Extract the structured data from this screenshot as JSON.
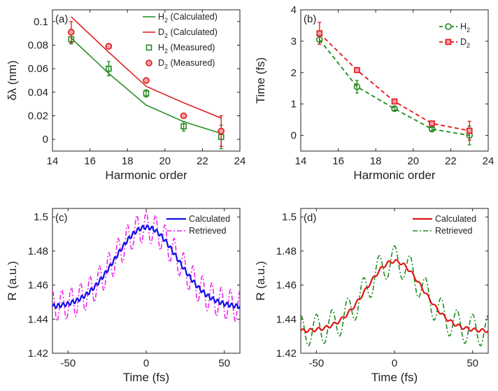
{
  "colors": {
    "h2": "#1e8a1e",
    "d2": "#e01515",
    "calc_c": "#1010e8",
    "retr_c": "#ee22ee",
    "calc_d": "#e01515",
    "retr_d": "#1e8a1e",
    "axis": "#222222"
  },
  "chart_data": [
    {
      "panel": "(a)",
      "type": "line",
      "xlabel": "Harmonic order",
      "ylabel": "δλ (nm)",
      "xlim": [
        14,
        24
      ],
      "ylim": [
        -0.01,
        0.11
      ],
      "xticks": [
        14,
        16,
        18,
        20,
        22,
        24
      ],
      "yticks": [
        0,
        0.02,
        0.04,
        0.06,
        0.08,
        0.1
      ],
      "ytick_labels": [
        "0",
        "0.02",
        "0.04",
        "0.06",
        "0.08",
        "0.1"
      ],
      "series": [
        {
          "name": "H2 (Calculated)",
          "label_main": "H",
          "label_sub": "2",
          "label_rest": " (Calculated)",
          "style": "line",
          "color_key": "h2",
          "x": [
            15,
            17,
            19,
            21,
            23
          ],
          "y": [
            0.086,
            0.056,
            0.029,
            0.015,
            0.005
          ]
        },
        {
          "name": "D2 (Calculated)",
          "label_main": "D",
          "label_sub": "2",
          "label_rest": " (Calculated)",
          "style": "line",
          "color_key": "d2",
          "x": [
            15,
            17,
            19,
            21,
            23
          ],
          "y": [
            0.104,
            0.074,
            0.045,
            0.031,
            0.018
          ]
        },
        {
          "name": "H2 (Measured)",
          "label_main": "H",
          "label_sub": "2",
          "label_rest": " (Measured)",
          "style": "square",
          "color_key": "h2",
          "x": [
            15,
            17,
            19,
            21,
            23
          ],
          "y": [
            0.085,
            0.06,
            0.039,
            0.011,
            0.002
          ],
          "err": [
            0.004,
            0.006,
            0.003,
            0.004,
            0.01
          ]
        },
        {
          "name": "D2 (Measured)",
          "label_main": "D",
          "label_sub": "2",
          "label_rest": " (Measured)",
          "style": "circle",
          "color_key": "d2",
          "x": [
            15,
            17,
            19,
            21,
            23
          ],
          "y": [
            0.091,
            0.079,
            0.05,
            0.02,
            0.007
          ],
          "err": [
            0.009,
            0,
            0,
            0,
            0.013
          ]
        }
      ],
      "legend": "top-right"
    },
    {
      "panel": "(b)",
      "type": "line",
      "xlabel": "Harmonic order",
      "ylabel": "Time (fs)",
      "xlim": [
        14,
        24
      ],
      "ylim": [
        -0.5,
        4
      ],
      "xticks": [
        14,
        16,
        18,
        20,
        22,
        24
      ],
      "yticks": [
        0,
        1,
        2,
        3,
        4
      ],
      "ytick_labels": [
        "0",
        "1",
        "2",
        "3",
        "4"
      ],
      "series": [
        {
          "name": "H2",
          "label_main": "H",
          "label_sub": "2",
          "label_rest": "",
          "style": "dash-circle",
          "color_key": "h2",
          "x": [
            15,
            17,
            19,
            21,
            23
          ],
          "y": [
            3.05,
            1.55,
            0.85,
            0.2,
            0.0
          ],
          "err": [
            0.15,
            0.2,
            0.05,
            0.05,
            0.3
          ]
        },
        {
          "name": "D2",
          "label_main": "D",
          "label_sub": "2",
          "label_rest": "",
          "style": "dash-square",
          "color_key": "d2",
          "x": [
            15,
            17,
            19,
            21,
            23
          ],
          "y": [
            3.25,
            2.08,
            1.08,
            0.38,
            0.15
          ],
          "err": [
            0.35,
            0.05,
            0.05,
            0.05,
            0.3
          ]
        }
      ],
      "legend": "top-right"
    },
    {
      "panel": "(c)",
      "type": "line",
      "xlabel": "Time (fs)",
      "ylabel": "R (a.u.)",
      "xlim": [
        -60,
        60
      ],
      "ylim": [
        1.42,
        1.505
      ],
      "xticks": [
        -50,
        0,
        50
      ],
      "yticks": [
        1.42,
        1.44,
        1.46,
        1.48,
        1.5
      ],
      "ytick_labels": [
        "1.42",
        "1.44",
        "1.46",
        "1.48",
        "1.5"
      ],
      "curve": {
        "base": 1.447,
        "amp": 0.047,
        "sigma": 20
      },
      "ripple": {
        "calc_amp": 0.0012,
        "retr_amp": 0.009,
        "period": 6
      },
      "series": [
        {
          "name": "Calculated",
          "label": "Calculated",
          "style": "solid",
          "color_key": "calc_c"
        },
        {
          "name": "Retrieved",
          "label": "Retrieved",
          "style": "dashdot",
          "color_key": "retr_c"
        }
      ],
      "legend": "top-right"
    },
    {
      "panel": "(d)",
      "type": "line",
      "xlabel": "Time (fs)",
      "ylabel": "R (a.u.)",
      "xlim": [
        -60,
        60
      ],
      "ylim": [
        1.42,
        1.505
      ],
      "xticks": [
        -50,
        0,
        50
      ],
      "yticks": [
        1.42,
        1.44,
        1.46,
        1.48,
        1.5
      ],
      "ytick_labels": [
        "1.42",
        "1.44",
        "1.46",
        "1.48",
        "1.5"
      ],
      "curve": {
        "base": 1.433,
        "amp": 0.041,
        "sigma": 18
      },
      "ripple": {
        "calc_amp": 0.001,
        "retr_amp": 0.009,
        "period": 10
      },
      "series": [
        {
          "name": "Calculated",
          "label": "Calculated",
          "style": "solid",
          "color_key": "calc_d"
        },
        {
          "name": "Retrieved",
          "label": "Retrieved",
          "style": "dashdot",
          "color_key": "retr_d"
        }
      ],
      "legend": "top-right"
    }
  ]
}
